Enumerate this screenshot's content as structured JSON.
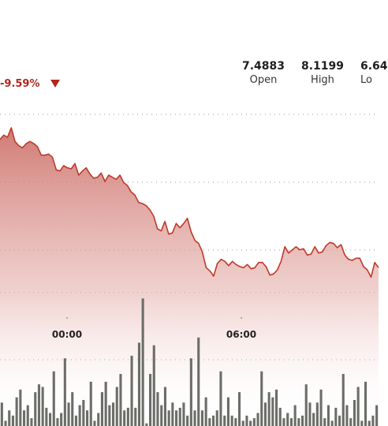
{
  "header": {
    "change_pct": "-9.59%",
    "change_direction_icon": "down-triangle-icon",
    "stats": [
      {
        "value": "7.4883",
        "label": "Open"
      },
      {
        "value": "8.1199",
        "label": "High"
      },
      {
        "value": "6.64",
        "label": "Lo"
      }
    ]
  },
  "colors": {
    "line": "#c0392b",
    "fill_top": "#c8645c",
    "negative": "#b3261e",
    "volume_bar": "#6b6e68",
    "grid": "#999999"
  },
  "chart_data": {
    "type": "area",
    "x_ticks": [
      "00:00",
      "06:00"
    ],
    "price": [
      7.95,
      7.99,
      7.97,
      8.06,
      7.93,
      7.89,
      7.87,
      7.91,
      7.93,
      7.91,
      7.88,
      7.8,
      7.8,
      7.81,
      7.78,
      7.66,
      7.65,
      7.7,
      7.68,
      7.67,
      7.72,
      7.61,
      7.65,
      7.68,
      7.62,
      7.58,
      7.59,
      7.63,
      7.55,
      7.61,
      7.59,
      7.57,
      7.61,
      7.54,
      7.51,
      7.45,
      7.42,
      7.35,
      7.34,
      7.32,
      7.28,
      7.22,
      7.1,
      7.08,
      7.17,
      7.05,
      7.06,
      7.15,
      7.11,
      7.15,
      7.2,
      7.07,
      6.99,
      6.96,
      6.88,
      6.73,
      6.7,
      6.65,
      6.77,
      6.81,
      6.79,
      6.75,
      6.79,
      6.76,
      6.74,
      6.73,
      6.76,
      6.72,
      6.73,
      6.78,
      6.78,
      6.74,
      6.66,
      6.67,
      6.71,
      6.79,
      6.93,
      6.87,
      6.9,
      6.93,
      6.9,
      6.91,
      6.85,
      6.86,
      6.93,
      6.87,
      6.88,
      6.94,
      6.97,
      6.96,
      6.92,
      6.95,
      6.85,
      6.81,
      6.8,
      6.82,
      6.82,
      6.74,
      6.71,
      6.64,
      6.78,
      6.73
    ],
    "volume": [
      9,
      2,
      6,
      4,
      11,
      14,
      6,
      8,
      3,
      13,
      16,
      15,
      7,
      5,
      21,
      3,
      5,
      26,
      9,
      13,
      4,
      8,
      10,
      6,
      17,
      2,
      5,
      13,
      17,
      8,
      9,
      15,
      20,
      6,
      7,
      27,
      7,
      32,
      49,
      1,
      20,
      31,
      13,
      8,
      15,
      6,
      9,
      6,
      7,
      9,
      4,
      26,
      6,
      34,
      6,
      11,
      3,
      4,
      6,
      21,
      4,
      11,
      4,
      3,
      13,
      2,
      4,
      2,
      3,
      5,
      21,
      9,
      13,
      11,
      14,
      7,
      3,
      5,
      3,
      8,
      3,
      4,
      16,
      9,
      5,
      9,
      14,
      3,
      8,
      2,
      7,
      4,
      20,
      8,
      3,
      10,
      15,
      2,
      17,
      2,
      4,
      8
    ]
  }
}
